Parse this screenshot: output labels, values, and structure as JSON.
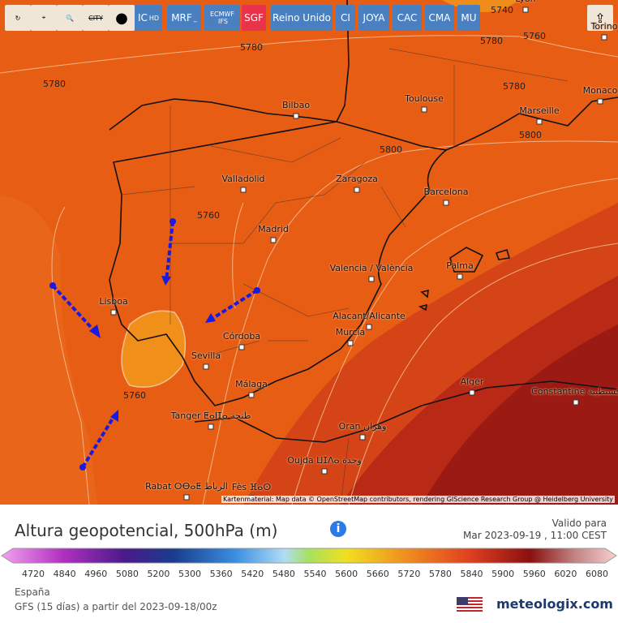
{
  "toolbar": {
    "city_icon": "CITY",
    "buttons": [
      {
        "label": "IC",
        "sub": "HD"
      },
      {
        "label": "MRF",
        "sub": "_"
      },
      {
        "label": "ECMWF",
        "sub": "IFS"
      },
      {
        "label": "SGF"
      },
      {
        "label": "Reino Unido"
      },
      {
        "label": "CI"
      },
      {
        "label": "JOYA"
      },
      {
        "label": "CAC"
      },
      {
        "label": "CMA"
      },
      {
        "label": "MU"
      }
    ]
  },
  "map": {
    "cities": [
      "Bilbao",
      "Toulouse",
      "Marseille",
      "Monaco",
      "Valladolid",
      "Zaragoza",
      "Barcelona",
      "Madrid",
      "Valencia / València",
      "Palma",
      "Lisboa",
      "Córdoba",
      "Sevilla",
      "Alacant/Alicante",
      "Murcia",
      "Málaga",
      "Alger",
      "Constantine قسنطينة",
      "Tanger ⵟⴰⵏⵊⴰ طنجة",
      "Oran وهران",
      "Oujda ⵡⵊⴷⴰ وجدة",
      "Rabat ⵔⴱⴰⵟ الرباط",
      "Fès ⴼⴰⵙ",
      "Lyon",
      "Torino"
    ],
    "contour_labels": [
      5780,
      5780,
      5780,
      5760,
      5780,
      5800,
      5800,
      5760,
      5760,
      5740
    ],
    "attribution": "Kartenmaterial: Map data © OpenStreetMap contributors, rendering GIScience Research Group @ Heidelberg University"
  },
  "legend": {
    "title": "Altura geopotencial, 500hPa (m)",
    "valid_label": "Valido para",
    "valid_time": "Mar 2023-09-19 , 11:00 CEST",
    "ticks": [
      4720,
      4840,
      4960,
      5080,
      5200,
      5300,
      5360,
      5420,
      5480,
      5540,
      5600,
      5660,
      5720,
      5780,
      5840,
      5900,
      5960,
      6020,
      6080
    ]
  },
  "footer": {
    "region": "España",
    "model": "GFS (15 días) a partir del 2023-09-18/00z",
    "brand": "meteologix.com"
  }
}
